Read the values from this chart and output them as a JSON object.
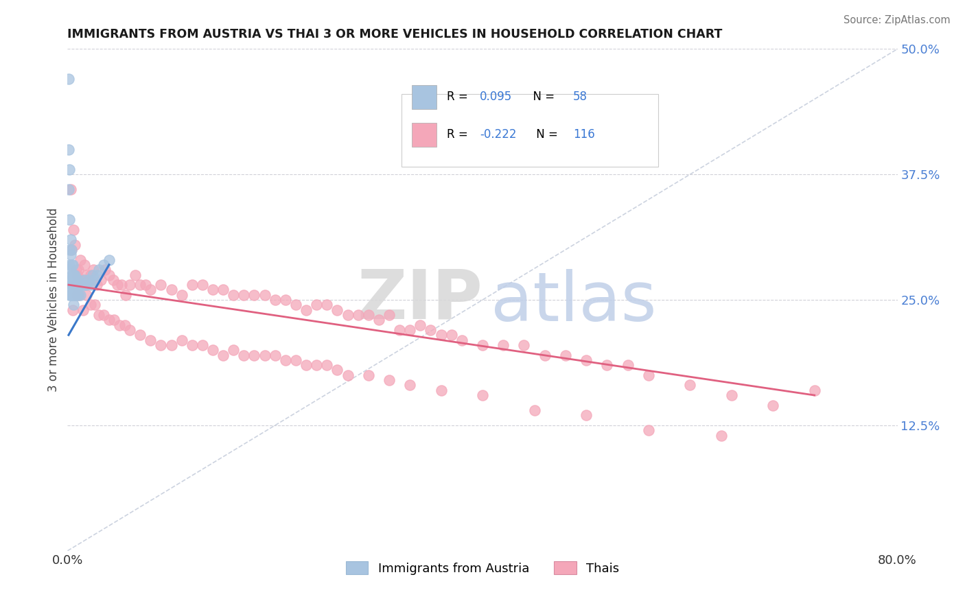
{
  "title": "IMMIGRANTS FROM AUSTRIA VS THAI 3 OR MORE VEHICLES IN HOUSEHOLD CORRELATION CHART",
  "source": "Source: ZipAtlas.com",
  "ylabel": "3 or more Vehicles in Household",
  "xlim": [
    0.0,
    0.8
  ],
  "ylim": [
    0.0,
    0.5
  ],
  "xtick_labels": [
    "0.0%",
    "80.0%"
  ],
  "ytick_positions": [
    0.125,
    0.25,
    0.375,
    0.5
  ],
  "ytick_labels": [
    "12.5%",
    "25.0%",
    "37.5%",
    "50.0%"
  ],
  "r_austria": 0.095,
  "n_austria": 58,
  "r_thai": -0.222,
  "n_thai": 116,
  "austria_color": "#a8c4e0",
  "thai_color": "#f4a7b9",
  "trendline_austria_color": "#3a78c9",
  "trendline_thai_color": "#e06080",
  "legend_label_austria": "Immigrants from Austria",
  "legend_label_thai": "Thais",
  "austria_x": [
    0.001,
    0.001,
    0.001,
    0.002,
    0.002,
    0.002,
    0.002,
    0.002,
    0.002,
    0.002,
    0.003,
    0.003,
    0.003,
    0.003,
    0.003,
    0.003,
    0.004,
    0.004,
    0.004,
    0.004,
    0.004,
    0.005,
    0.005,
    0.005,
    0.005,
    0.006,
    0.006,
    0.006,
    0.006,
    0.006,
    0.007,
    0.007,
    0.007,
    0.008,
    0.008,
    0.008,
    0.009,
    0.009,
    0.01,
    0.01,
    0.01,
    0.011,
    0.012,
    0.012,
    0.013,
    0.014,
    0.015,
    0.016,
    0.017,
    0.018,
    0.02,
    0.022,
    0.024,
    0.026,
    0.028,
    0.03,
    0.035,
    0.04
  ],
  "austria_y": [
    0.47,
    0.4,
    0.36,
    0.38,
    0.33,
    0.3,
    0.285,
    0.27,
    0.26,
    0.255,
    0.31,
    0.295,
    0.28,
    0.27,
    0.26,
    0.255,
    0.3,
    0.285,
    0.275,
    0.265,
    0.255,
    0.285,
    0.275,
    0.265,
    0.255,
    0.275,
    0.27,
    0.265,
    0.255,
    0.245,
    0.275,
    0.265,
    0.255,
    0.27,
    0.265,
    0.255,
    0.265,
    0.255,
    0.27,
    0.265,
    0.255,
    0.265,
    0.265,
    0.255,
    0.265,
    0.265,
    0.265,
    0.27,
    0.265,
    0.265,
    0.27,
    0.265,
    0.275,
    0.27,
    0.275,
    0.28,
    0.285,
    0.29
  ],
  "thai_x": [
    0.003,
    0.004,
    0.006,
    0.007,
    0.008,
    0.009,
    0.01,
    0.012,
    0.014,
    0.016,
    0.018,
    0.02,
    0.022,
    0.025,
    0.028,
    0.032,
    0.036,
    0.04,
    0.044,
    0.048,
    0.052,
    0.056,
    0.06,
    0.065,
    0.07,
    0.075,
    0.08,
    0.09,
    0.1,
    0.11,
    0.12,
    0.13,
    0.14,
    0.15,
    0.16,
    0.17,
    0.18,
    0.19,
    0.2,
    0.21,
    0.22,
    0.23,
    0.24,
    0.25,
    0.26,
    0.27,
    0.28,
    0.29,
    0.3,
    0.31,
    0.32,
    0.33,
    0.34,
    0.35,
    0.36,
    0.37,
    0.38,
    0.4,
    0.42,
    0.44,
    0.46,
    0.48,
    0.5,
    0.52,
    0.54,
    0.56,
    0.6,
    0.64,
    0.68,
    0.72,
    0.005,
    0.007,
    0.009,
    0.011,
    0.013,
    0.015,
    0.018,
    0.022,
    0.026,
    0.03,
    0.035,
    0.04,
    0.045,
    0.05,
    0.055,
    0.06,
    0.07,
    0.08,
    0.09,
    0.1,
    0.11,
    0.12,
    0.13,
    0.14,
    0.15,
    0.16,
    0.17,
    0.18,
    0.19,
    0.2,
    0.21,
    0.22,
    0.23,
    0.24,
    0.25,
    0.26,
    0.27,
    0.29,
    0.31,
    0.33,
    0.36,
    0.4,
    0.45,
    0.5,
    0.56,
    0.63
  ],
  "thai_y": [
    0.36,
    0.3,
    0.32,
    0.305,
    0.28,
    0.275,
    0.28,
    0.29,
    0.27,
    0.285,
    0.275,
    0.27,
    0.275,
    0.28,
    0.265,
    0.27,
    0.28,
    0.275,
    0.27,
    0.265,
    0.265,
    0.255,
    0.265,
    0.275,
    0.265,
    0.265,
    0.26,
    0.265,
    0.26,
    0.255,
    0.265,
    0.265,
    0.26,
    0.26,
    0.255,
    0.255,
    0.255,
    0.255,
    0.25,
    0.25,
    0.245,
    0.24,
    0.245,
    0.245,
    0.24,
    0.235,
    0.235,
    0.235,
    0.23,
    0.235,
    0.22,
    0.22,
    0.225,
    0.22,
    0.215,
    0.215,
    0.21,
    0.205,
    0.205,
    0.205,
    0.195,
    0.195,
    0.19,
    0.185,
    0.185,
    0.175,
    0.165,
    0.155,
    0.145,
    0.16,
    0.24,
    0.265,
    0.255,
    0.255,
    0.27,
    0.24,
    0.255,
    0.245,
    0.245,
    0.235,
    0.235,
    0.23,
    0.23,
    0.225,
    0.225,
    0.22,
    0.215,
    0.21,
    0.205,
    0.205,
    0.21,
    0.205,
    0.205,
    0.2,
    0.195,
    0.2,
    0.195,
    0.195,
    0.195,
    0.195,
    0.19,
    0.19,
    0.185,
    0.185,
    0.185,
    0.18,
    0.175,
    0.175,
    0.17,
    0.165,
    0.16,
    0.155,
    0.14,
    0.135,
    0.12,
    0.115
  ]
}
